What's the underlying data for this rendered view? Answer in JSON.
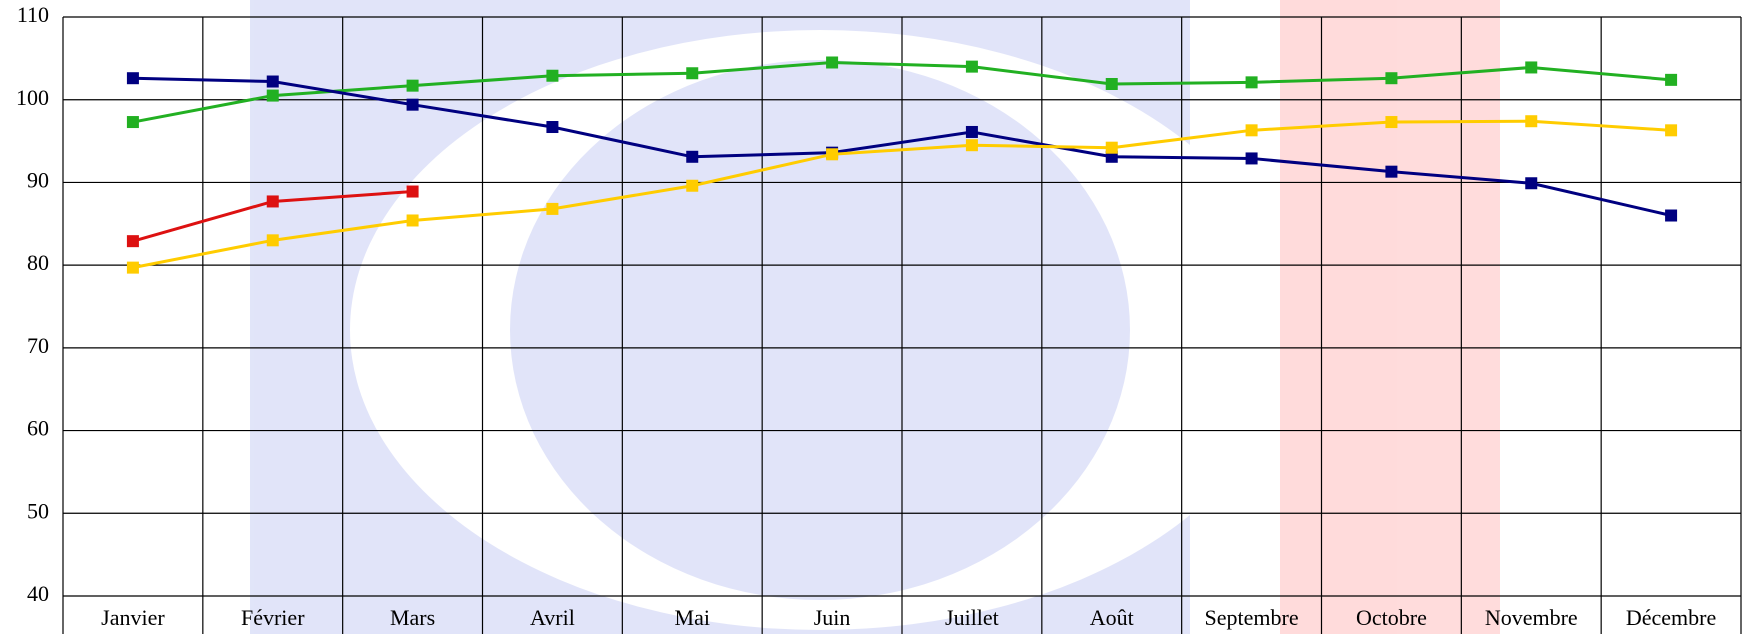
{
  "chart_data": {
    "type": "line",
    "categories": [
      "Janvier",
      "Février",
      "Mars",
      "Avril",
      "Mai",
      "Juin",
      "Juillet",
      "Août",
      "Septembre",
      "Octobre",
      "Novembre",
      "Décembre"
    ],
    "series": [
      {
        "color": "#22b022",
        "values": [
          97.3,
          100.5,
          101.7,
          102.9,
          103.2,
          104.5,
          104.0,
          101.9,
          102.1,
          102.6,
          103.9,
          102.4
        ]
      },
      {
        "color": "#000080",
        "values": [
          102.6,
          102.2,
          99.4,
          96.7,
          93.1,
          93.6,
          96.1,
          93.1,
          92.9,
          91.3,
          89.9,
          86.0
        ]
      },
      {
        "color": "#ffcc00",
        "values": [
          79.7,
          83.0,
          85.4,
          86.8,
          89.6,
          93.4,
          94.5,
          94.2,
          96.3,
          97.3,
          97.4,
          96.3
        ]
      },
      {
        "color": "#dd1111",
        "values": [
          82.9,
          87.7,
          88.9,
          null,
          null,
          null,
          null,
          null,
          null,
          null,
          null,
          null
        ]
      }
    ],
    "ylim": [
      40,
      110
    ],
    "yticks": [
      40,
      50,
      60,
      70,
      80,
      90,
      100,
      110
    ],
    "grid": true
  }
}
